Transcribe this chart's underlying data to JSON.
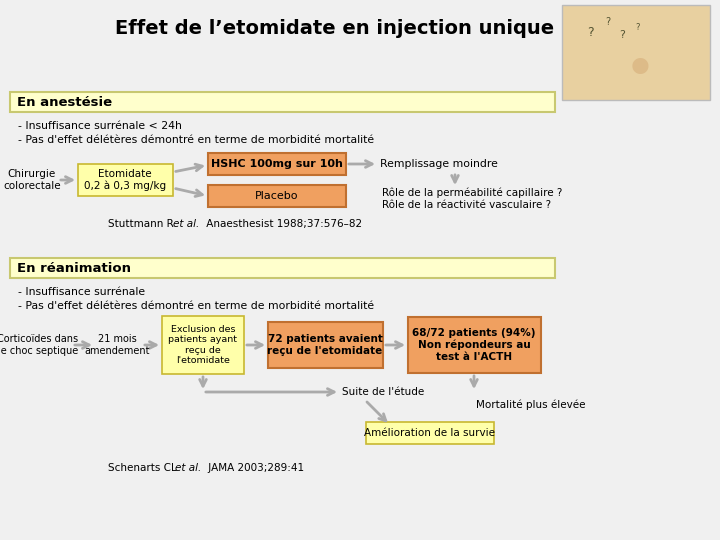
{
  "title": "Effet de l’etomidate en injection unique",
  "bg_color": "#e8e8e8",
  "section1_label": "En anestésie",
  "section1_bg": "#ffffcc",
  "section1_border": "#c8c870",
  "section2_label": "En réanimation",
  "section2_bg": "#ffffcc",
  "section2_border": "#c8c870",
  "box_orange": "#f0a060",
  "box_orange_border": "#c07030",
  "box_yellow": "#ffffaa",
  "box_yellow_border": "#c8b830",
  "arrow_color": "#aaaaaa",
  "text_color": "#000000",
  "ref_color": "#222222"
}
